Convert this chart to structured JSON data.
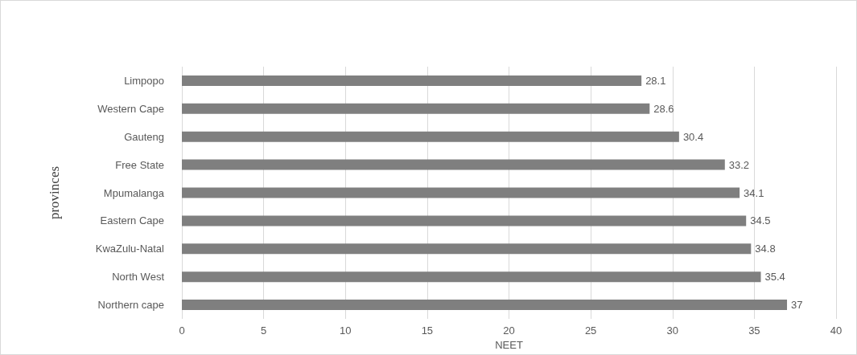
{
  "chart_data": {
    "type": "bar",
    "orientation": "horizontal",
    "xlabel": "NEET",
    "ylabel": "provinces",
    "categories": [
      "Limpopo",
      "Western Cape",
      "Gauteng",
      "Free State",
      "Mpumalanga",
      "Eastern Cape",
      "KwaZulu-Natal",
      "North West",
      "Northern cape"
    ],
    "values": [
      28.1,
      28.6,
      30.4,
      33.2,
      34.1,
      34.5,
      34.8,
      35.4,
      37
    ],
    "color": "#7f7f7f",
    "xlim": [
      0,
      40
    ],
    "xticks": [
      0,
      5,
      10,
      15,
      20,
      25,
      30,
      35,
      40
    ],
    "grid": "x",
    "data_labels": true
  }
}
